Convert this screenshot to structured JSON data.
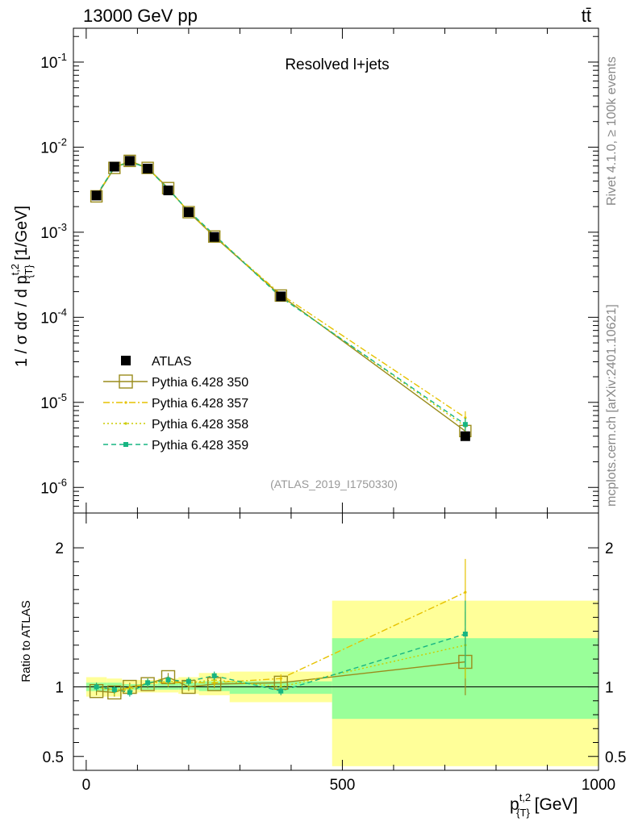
{
  "header": {
    "energy_label": "13000 GeV pp",
    "process_label": "tt̄",
    "side_rivet": "Rivet 4.1.0, ≥ 100k events",
    "side_mcplots": "mcplots.cern.ch [arXiv:2401.10621]"
  },
  "chart_data": [
    {
      "type": "scatter",
      "panel": "main",
      "title": "Resolved l+jets",
      "analysis_id": "(ATLAS_2019_I1750330)",
      "xlabel": "p_{T}^{t,2} [GeV]",
      "ylabel": "1 / σ dσ / d p_{T}^{t,2} [1/GeV]",
      "yscale": "log",
      "xlim": [
        -25,
        1000
      ],
      "ylim": [
        5e-07,
        0.25
      ],
      "ytick_labels": [
        "10^-1",
        "10^-2",
        "10^-3",
        "10^-4",
        "10^-5",
        "10^-6"
      ],
      "ytick_values": [
        0.1,
        0.01,
        0.001,
        0.0001,
        1e-05,
        1e-06
      ],
      "x": [
        20,
        55,
        85,
        120,
        160,
        200,
        250,
        380,
        740
      ],
      "series": [
        {
          "name": "ATLAS",
          "style": "data",
          "color": "#000000",
          "values": [
            0.0027,
            0.0059,
            0.0069,
            0.0056,
            0.0031,
            0.00172,
            0.00088,
            0.000176,
            4e-06
          ]
        },
        {
          "name": "Pythia 6.428 350",
          "style": "solid-open-square",
          "color": "#9a8c1c",
          "values": [
            0.00264,
            0.0057,
            0.0069,
            0.0057,
            0.0033,
            0.00172,
            0.00089,
            0.00018,
            4.6e-06
          ]
        },
        {
          "name": "Pythia 6.428 357",
          "style": "dashdot",
          "color": "#e6c200",
          "values": [
            0.0027,
            0.0058,
            0.0068,
            0.0057,
            0.0032,
            0.00176,
            0.0009,
            0.000186,
            6.6e-06
          ]
        },
        {
          "name": "Pythia 6.428 358",
          "style": "dotted",
          "color": "#cccc00",
          "values": [
            0.00272,
            0.0057,
            0.0067,
            0.0057,
            0.0032,
            0.00176,
            0.00092,
            0.000176,
            5.2e-06
          ]
        },
        {
          "name": "Pythia 6.428 359",
          "style": "dashed-square",
          "color": "#17b582",
          "values": [
            0.00272,
            0.0058,
            0.0067,
            0.0057,
            0.0032,
            0.00178,
            0.00093,
            0.000172,
            5.5e-06
          ]
        }
      ]
    },
    {
      "type": "scatter",
      "panel": "ratio",
      "ylabel": "Ratio to ATLAS",
      "xlabel": "p_{T}^{t,2} [GeV]",
      "xlim": [
        -25,
        1000
      ],
      "ylim": [
        0.4,
        2.25
      ],
      "xtick_values": [
        0,
        500,
        1000
      ],
      "xtick_labels": [
        "0",
        "500",
        "1000"
      ],
      "ytick_values": [
        0.5,
        1,
        2
      ],
      "ytick_labels": [
        "0.5",
        "1",
        "2"
      ],
      "bins": [
        0,
        40,
        70,
        100,
        140,
        180,
        220,
        280,
        480,
        1000
      ],
      "band_total_lo": [
        0.93,
        0.93,
        0.95,
        0.96,
        0.96,
        0.95,
        0.94,
        0.89,
        0.43
      ],
      "band_total_hi": [
        1.07,
        1.06,
        1.05,
        1.05,
        1.06,
        1.07,
        1.1,
        1.11,
        1.62
      ],
      "band_stat_lo": [
        0.97,
        0.97,
        0.98,
        0.98,
        0.98,
        0.98,
        0.97,
        0.95,
        0.77
      ],
      "band_stat_hi": [
        1.03,
        1.03,
        1.02,
        1.02,
        1.03,
        1.03,
        1.04,
        1.04,
        1.35
      ],
      "x": [
        20,
        55,
        85,
        120,
        160,
        200,
        250,
        380,
        740
      ],
      "series": [
        {
          "name": "Pythia 6.428 350",
          "color": "#9a8c1c",
          "values": [
            0.97,
            0.96,
            1.0,
            1.02,
            1.07,
            1.0,
            1.02,
            1.03,
            1.18
          ]
        },
        {
          "name": "Pythia 6.428 357",
          "color": "#e6c200",
          "values": [
            1.0,
            0.98,
            0.99,
            1.03,
            1.03,
            1.03,
            1.03,
            1.06,
            1.68
          ]
        },
        {
          "name": "Pythia 6.428 358",
          "color": "#cccc00",
          "values": [
            1.0,
            0.97,
            0.98,
            1.03,
            1.04,
            1.03,
            1.05,
            1.0,
            1.3
          ]
        },
        {
          "name": "Pythia 6.428 359",
          "color": "#17b582",
          "values": [
            1.0,
            0.98,
            0.96,
            1.03,
            1.05,
            1.04,
            1.08,
            0.97,
            1.38
          ]
        }
      ]
    }
  ]
}
